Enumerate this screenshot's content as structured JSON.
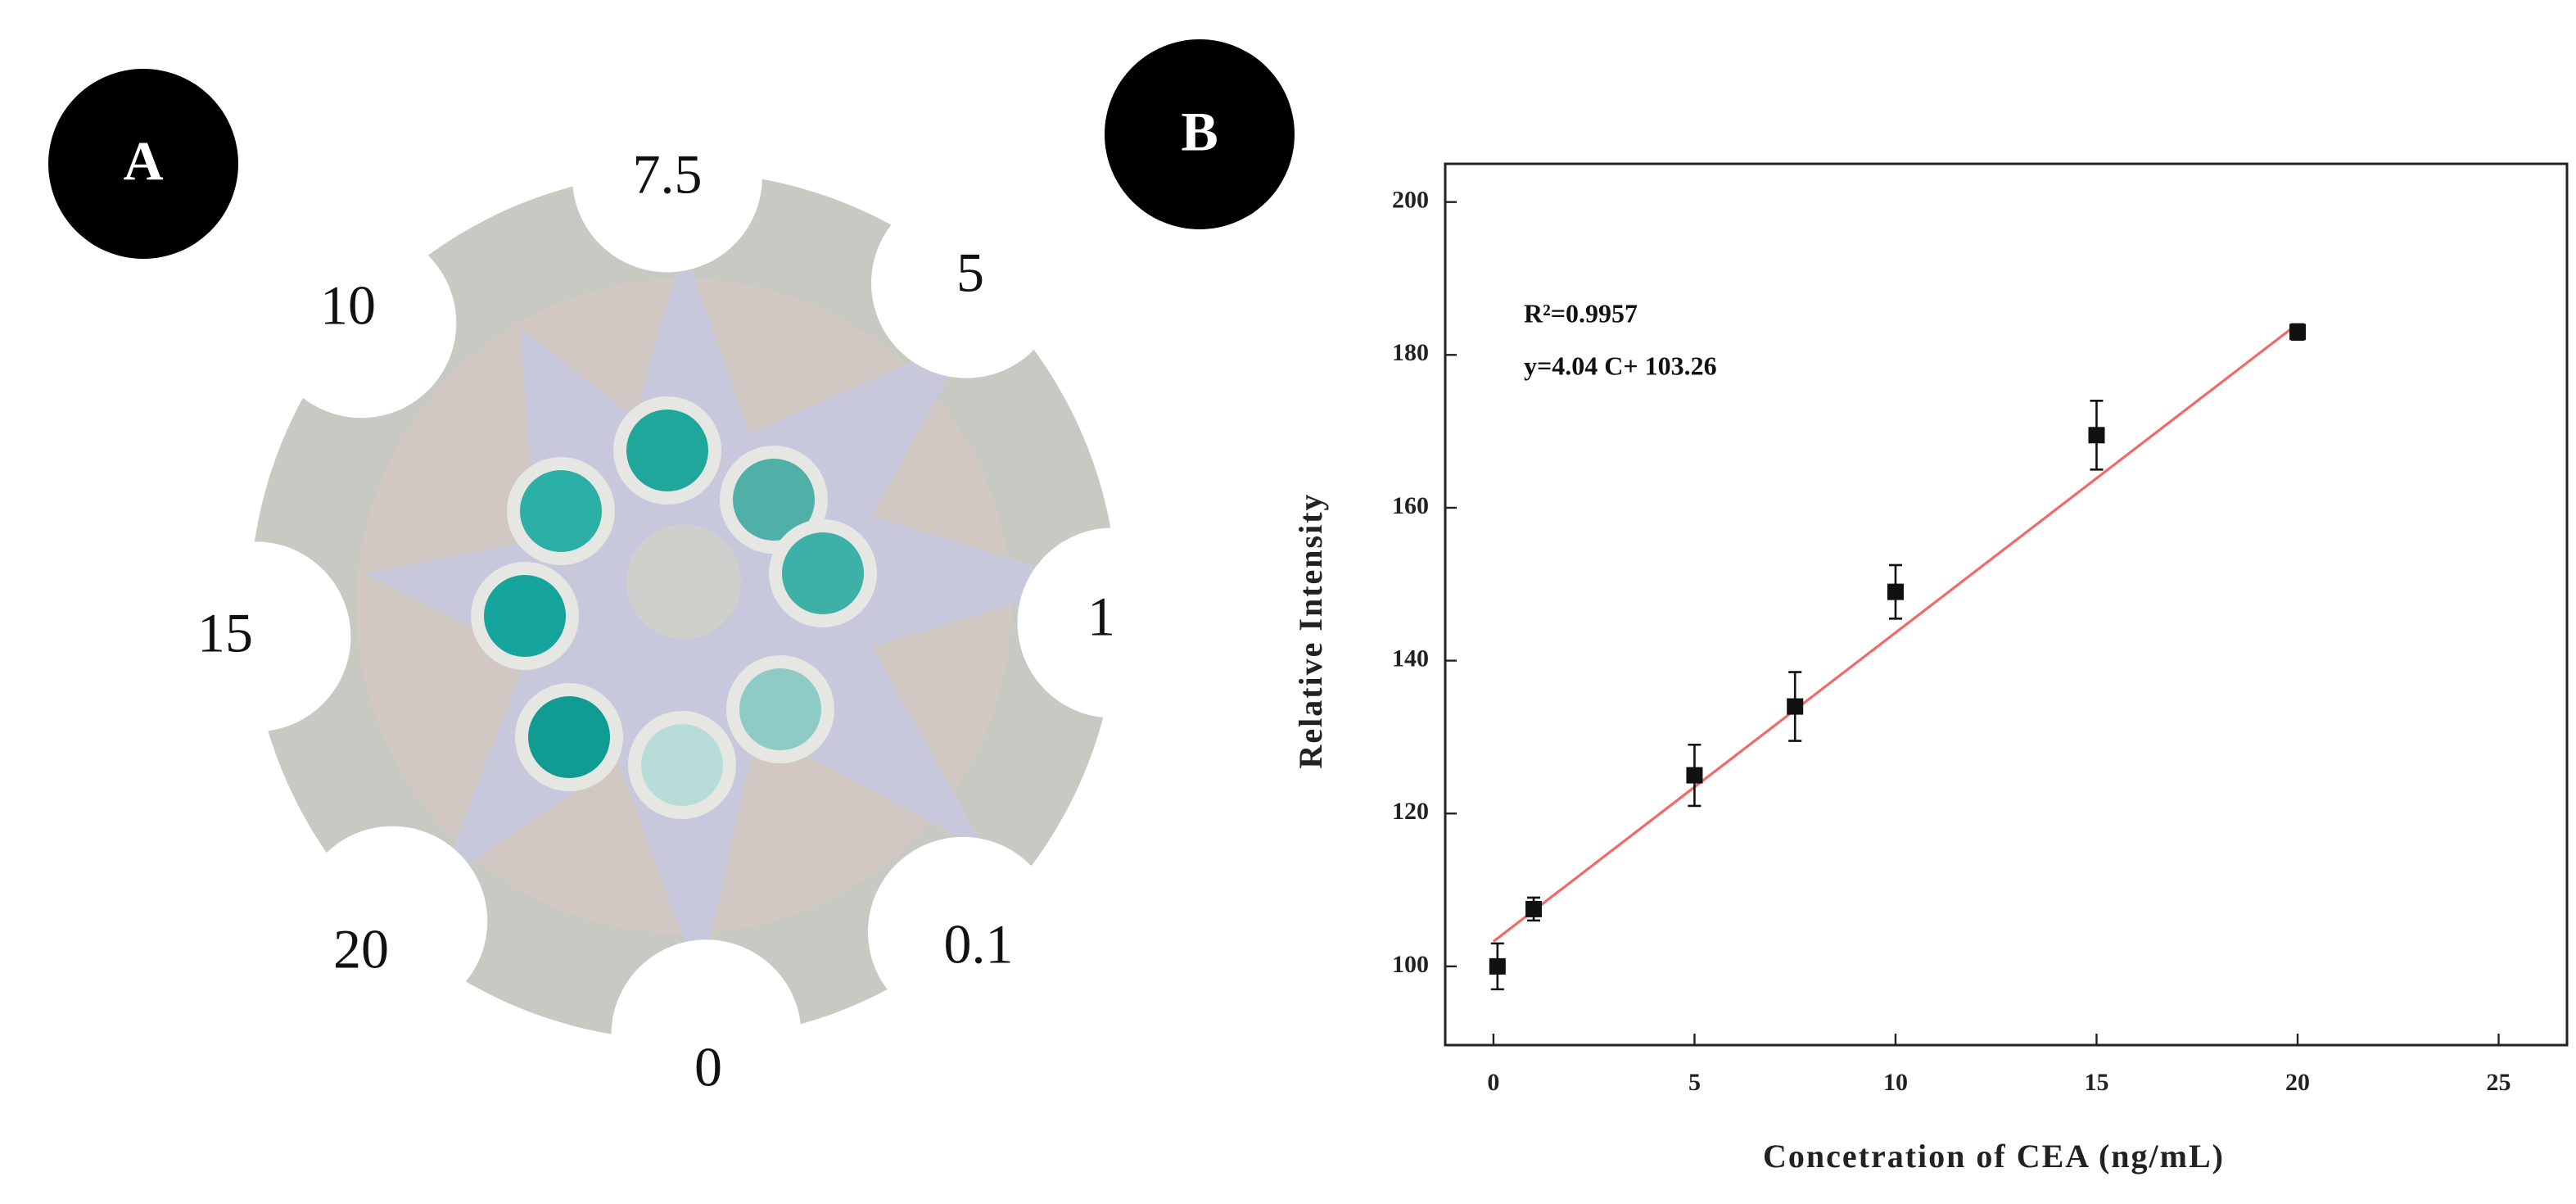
{
  "panel_a": {
    "label": "A",
    "labels": [
      "7.5",
      "5",
      "1",
      "0.1",
      "0",
      "20",
      "15",
      "10"
    ]
  },
  "chart_data": {
    "type": "scatter",
    "panel_label": "B",
    "x": [
      0.1,
      1,
      5,
      7.5,
      10,
      15,
      20
    ],
    "series": [
      {
        "values": [
          100,
          107.5,
          125,
          134,
          149,
          169.5,
          183
        ],
        "errors": [
          3,
          1.5,
          4,
          4.5,
          3.5,
          4.5,
          1
        ],
        "color": "#111111"
      }
    ],
    "fit": {
      "x": [
        0,
        20
      ],
      "values": [
        103.26,
        184.06
      ],
      "color": "#f06a6a"
    },
    "annotations": [
      "R²=0.9957",
      "y=4.04 C+ 103.26"
    ],
    "xlabel": "Concetration of CEA (ng/mL)",
    "ylabel": "Relative Intensity",
    "xlim": [
      -1.2,
      26.7
    ],
    "ylim": [
      89.7,
      205
    ],
    "xticks": [
      0,
      5,
      10,
      15,
      20,
      25
    ],
    "yticks": [
      100,
      120,
      140,
      160,
      180,
      200
    ]
  }
}
